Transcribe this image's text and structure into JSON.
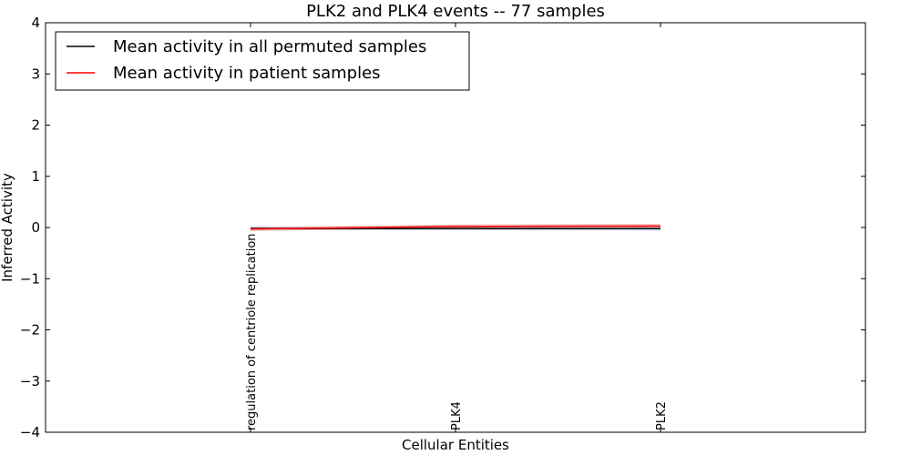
{
  "chart_data": {
    "type": "line",
    "title": "PLK2 and PLK4 events -- 77 samples",
    "xlabel": "Cellular Entities",
    "ylabel": "Inferred Activity",
    "ylim": [
      -4,
      4
    ],
    "xlim": [
      0,
      4
    ],
    "yticks": [
      -4,
      -3,
      -2,
      -1,
      0,
      1,
      2,
      3,
      4
    ],
    "ytick_labels": [
      "−4",
      "−3",
      "−2",
      "−1",
      "0",
      "1",
      "2",
      "3",
      "4"
    ],
    "xticks": [
      0,
      1,
      2,
      3,
      4
    ],
    "categories": [
      {
        "x": 1,
        "label": "regulation of centriole replication"
      },
      {
        "x": 2,
        "label": "PLK4"
      },
      {
        "x": 3,
        "label": "PLK2"
      }
    ],
    "legend_position": "top-left",
    "series": [
      {
        "name": "Mean activity in all permuted samples",
        "color": "#000000",
        "x": [
          1,
          2,
          3
        ],
        "values": [
          -0.02,
          -0.02,
          -0.02
        ],
        "band_lower": [
          -0.05,
          -0.05,
          -0.06
        ],
        "band_upper": [
          0.02,
          0.02,
          0.02
        ],
        "band_color": "#b0c4de"
      },
      {
        "name": "Mean activity in patient samples",
        "color": "#ff0000",
        "x": [
          1,
          2,
          3
        ],
        "values": [
          -0.03,
          0.02,
          0.03
        ],
        "band_lower": [
          -0.07,
          -0.01,
          0.0
        ],
        "band_upper": [
          0.01,
          0.06,
          0.07
        ],
        "band_color": "#e8a0a0"
      }
    ]
  }
}
